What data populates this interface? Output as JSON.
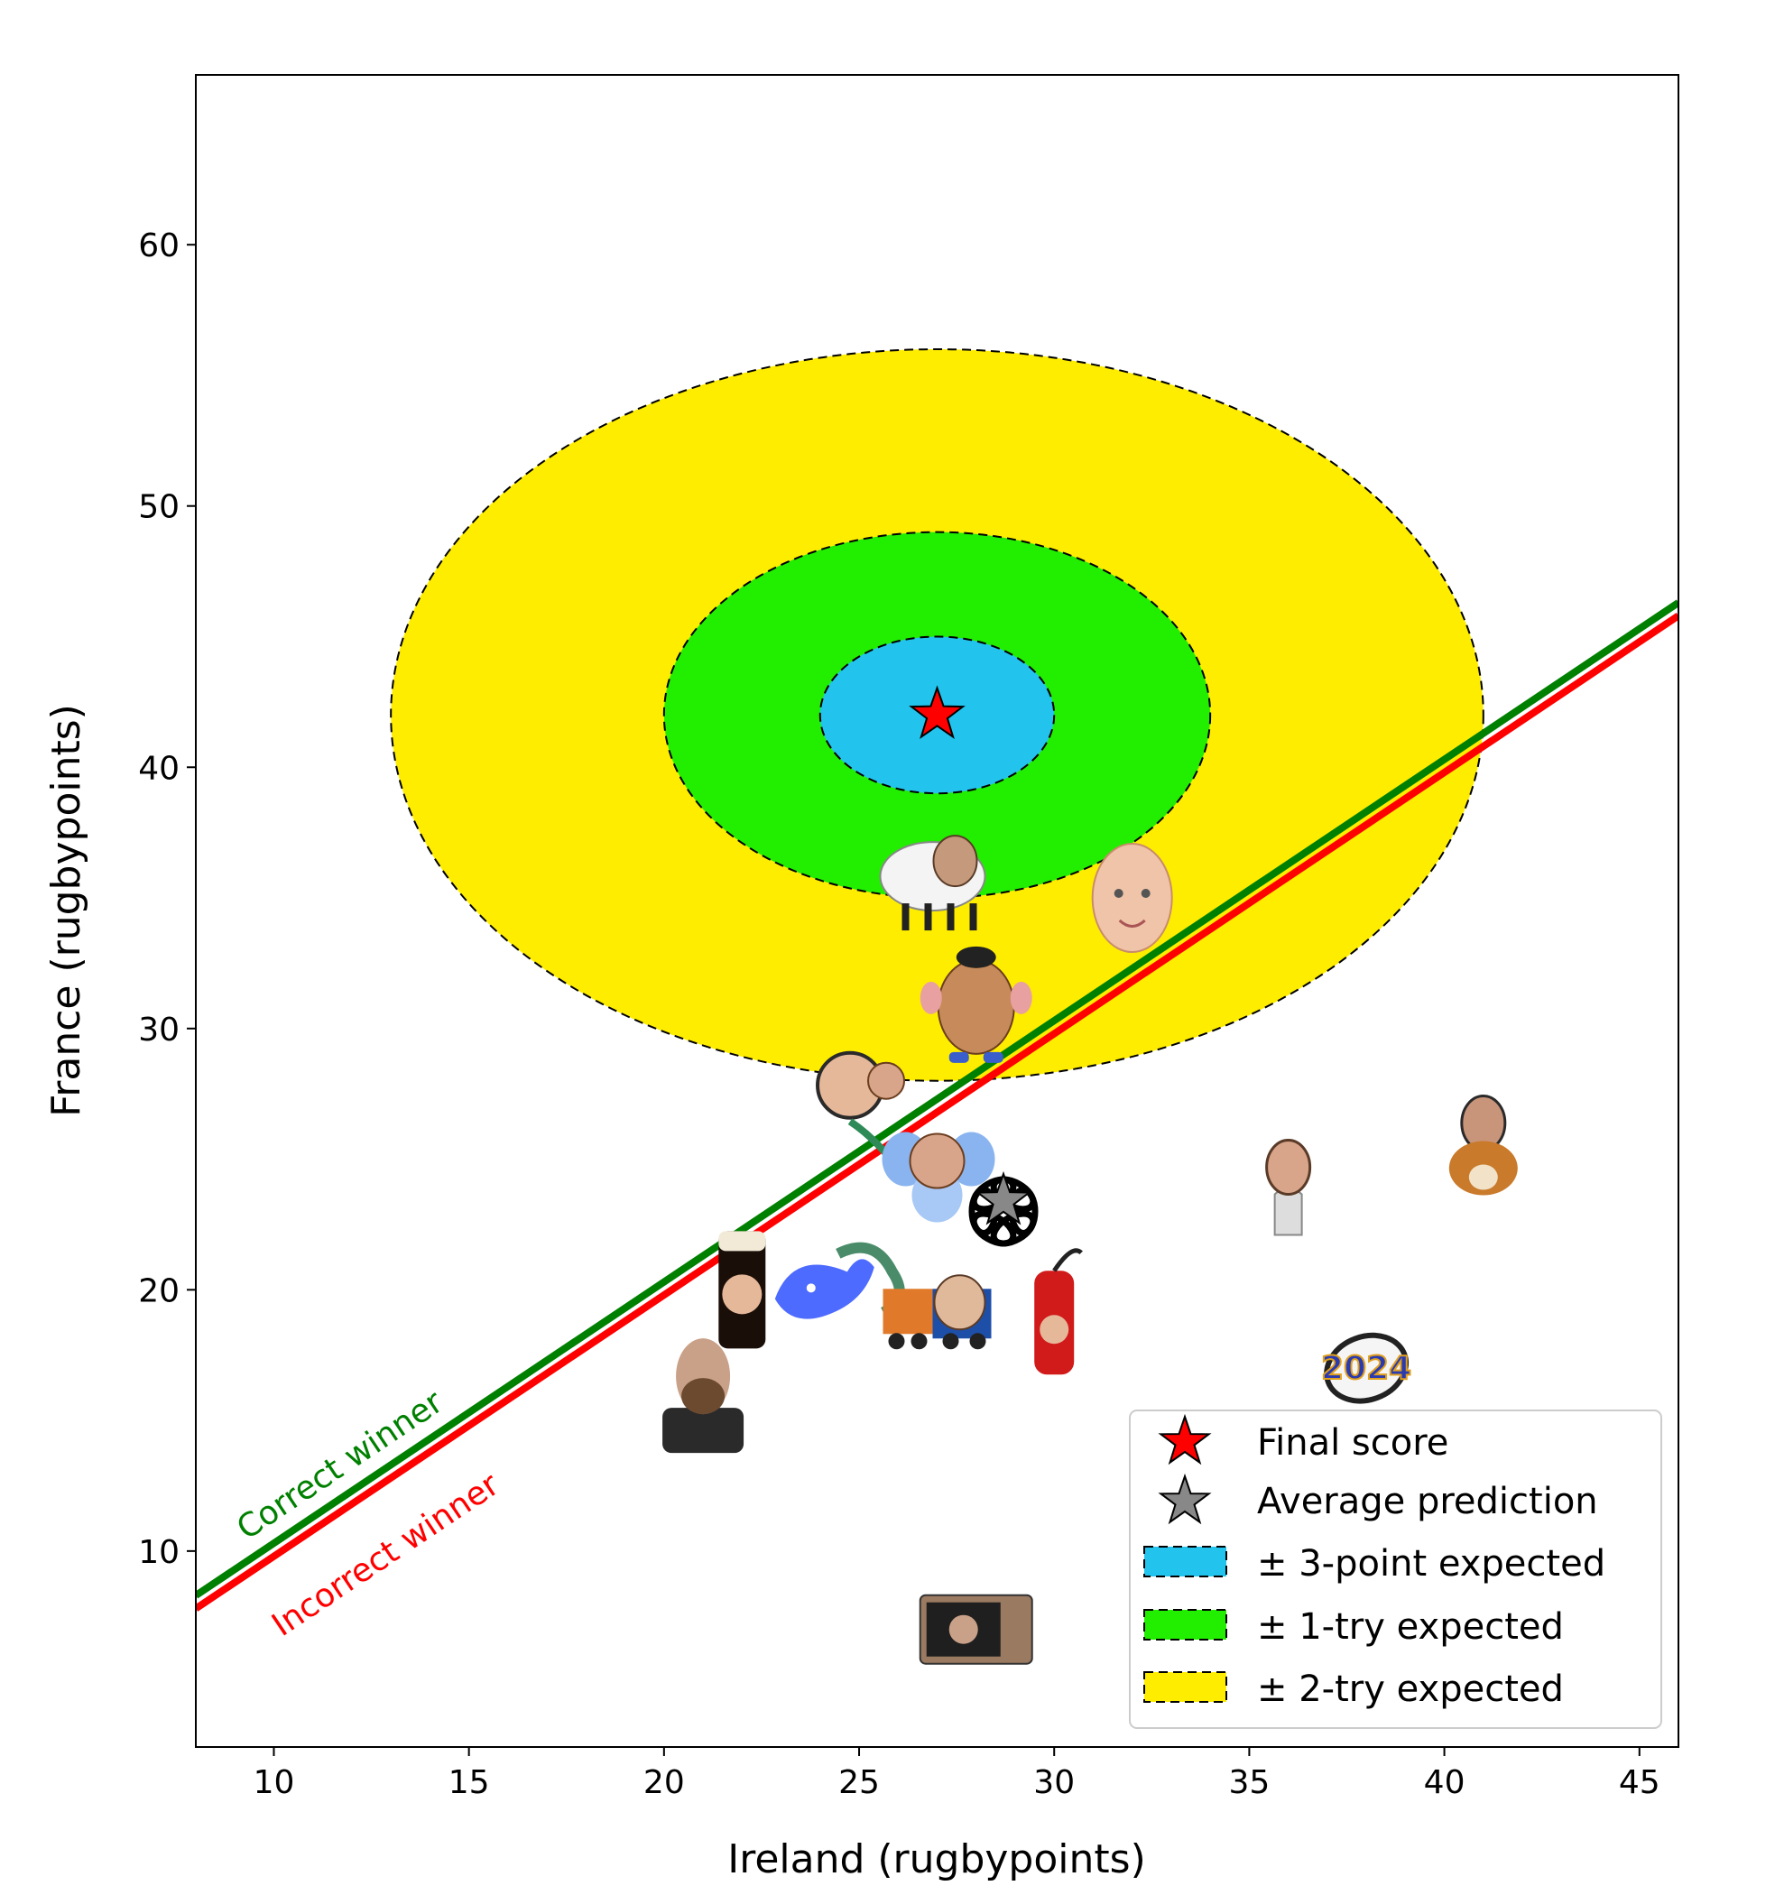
{
  "chart_data": {
    "type": "scatter",
    "title": "",
    "xlabel": "Ireland (rugbypoints)",
    "ylabel": "France (rugbypoints)",
    "xlim": [
      8,
      46
    ],
    "ylim": [
      2.5,
      66.5
    ],
    "xticks": [
      10,
      15,
      20,
      25,
      30,
      35,
      40,
      45
    ],
    "yticks": [
      10,
      20,
      30,
      40,
      50,
      60
    ],
    "grid": false,
    "legend_position": "lower-right",
    "final_score": {
      "x": 27,
      "y": 42
    },
    "average_prediction": {
      "x": 28.7,
      "y": 23.4
    },
    "regions": [
      {
        "key": "two_try",
        "rx": 14,
        "ry": 14,
        "color": "#FFED00"
      },
      {
        "key": "one_try",
        "rx": 7,
        "ry": 7,
        "color": "#22EE00"
      },
      {
        "key": "three_point",
        "rx": 3,
        "ry": 3,
        "color": "#22C4EE"
      }
    ],
    "winner_lines": [
      {
        "key": "correct",
        "label": "Correct winner",
        "color": "#008000",
        "y_at_xmin": 8.3,
        "y_at_xmax": 46.3
      },
      {
        "key": "incorrect",
        "label": "Incorrect winner",
        "color": "#FF0000",
        "y_at_xmin": 7.8,
        "y_at_xmax": 45.8
      }
    ],
    "predictions": [
      {
        "x": 27,
        "y": 36,
        "icon": "sheep-face-icon"
      },
      {
        "x": 32,
        "y": 35,
        "icon": "baby-face-icon"
      },
      {
        "x": 28,
        "y": 31,
        "icon": "potato-head-face-icon"
      },
      {
        "x": 25,
        "y": 28,
        "icon": "astronaut-face-icon"
      },
      {
        "x": 27,
        "y": 25,
        "icon": "elephant-face-icon"
      },
      {
        "x": 28.7,
        "y": 23,
        "icon": "openai-logo-icon"
      },
      {
        "x": 36,
        "y": 24,
        "icon": "ghost-face-icon"
      },
      {
        "x": 41,
        "y": 25,
        "icon": "dog-face-icon"
      },
      {
        "x": 22,
        "y": 20,
        "icon": "guinness-face-icon"
      },
      {
        "x": 24,
        "y": 20,
        "icon": "deepseek-whale-icon"
      },
      {
        "x": 27,
        "y": 19,
        "icon": "truck-face-icon"
      },
      {
        "x": 30,
        "y": 19,
        "icon": "extinguisher-face-icon"
      },
      {
        "x": 38,
        "y": 17,
        "icon": "rugby-ball-2024-icon"
      },
      {
        "x": 21,
        "y": 16,
        "icon": "bearded-face-icon"
      },
      {
        "x": 28,
        "y": 7,
        "icon": "microwave-face-icon"
      }
    ],
    "legend": [
      {
        "key": "final",
        "label": "Final score"
      },
      {
        "key": "avg",
        "label": "Average prediction"
      },
      {
        "key": "three",
        "label": "± 3-point expected"
      },
      {
        "key": "one",
        "label": "± 1-try expected"
      },
      {
        "key": "two",
        "label": "± 2-try expected"
      }
    ],
    "ball_label": "2024"
  },
  "colors": {
    "final_star": "#FF0000",
    "average_star": "#888888",
    "axis": "#000000"
  }
}
